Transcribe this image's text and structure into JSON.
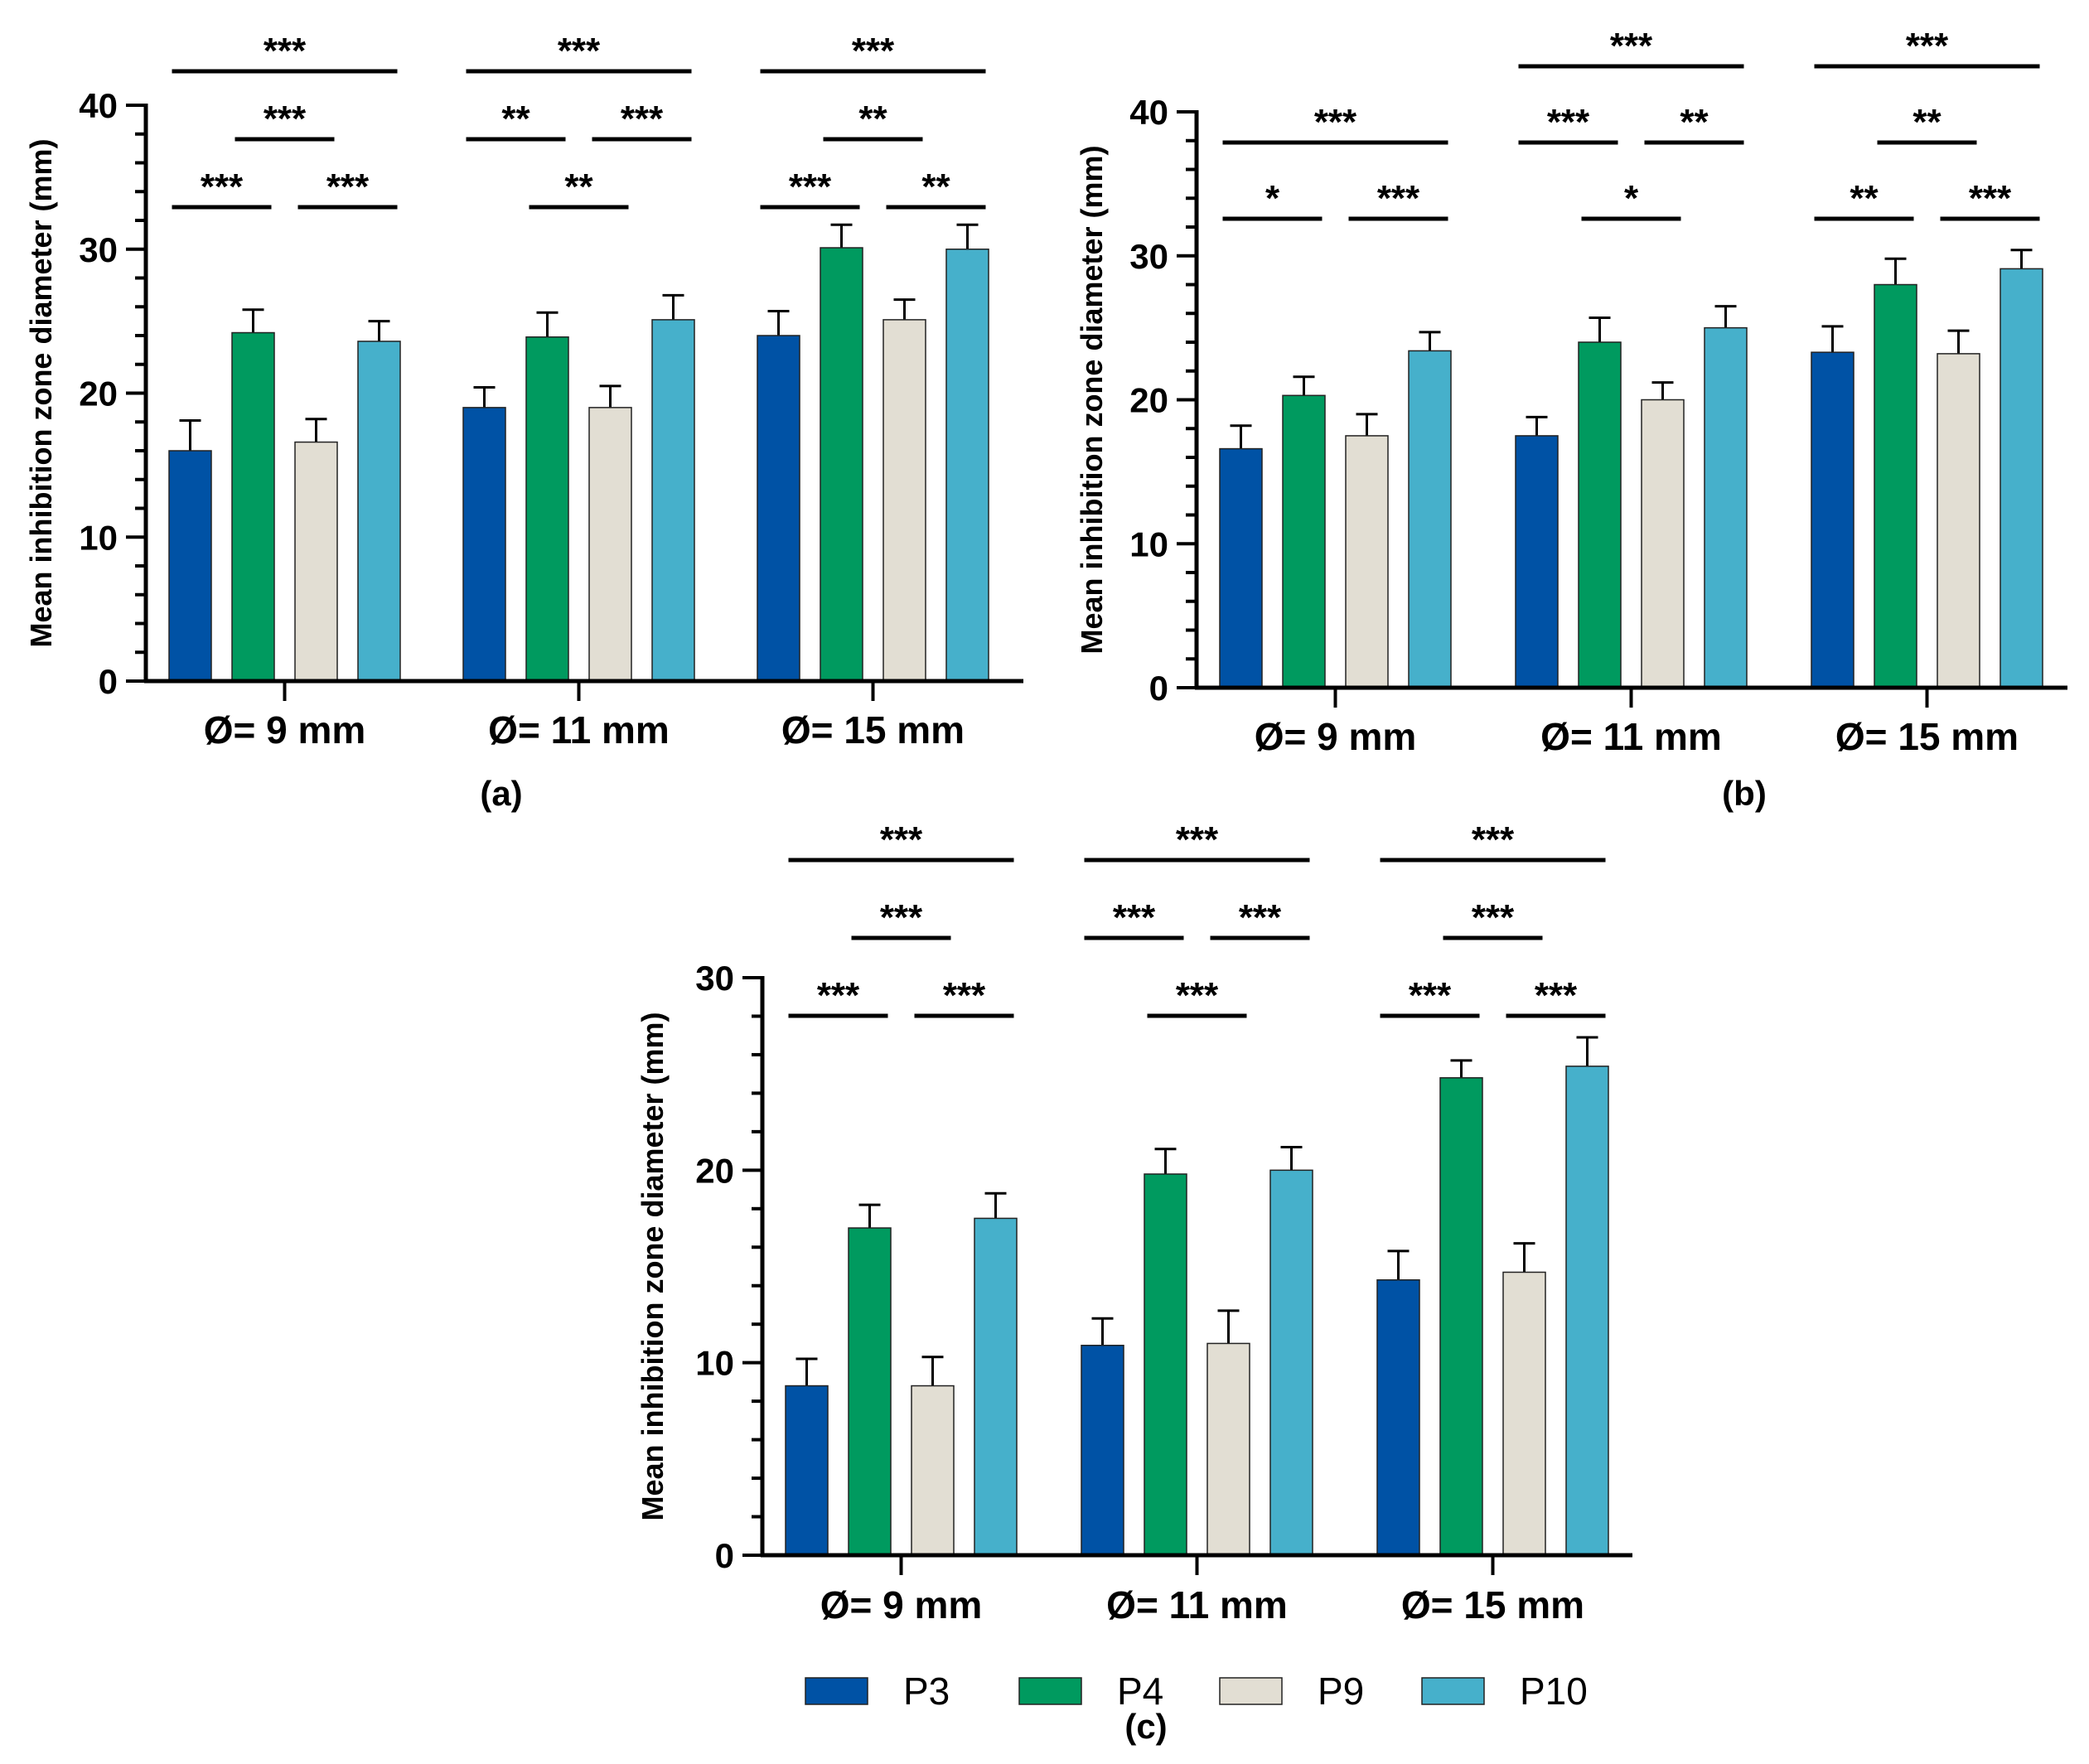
{
  "figure": {
    "legend": {
      "entries": [
        {
          "name": "P3",
          "color": "#0052a5"
        },
        {
          "name": "P4",
          "color": "#009a5f"
        },
        {
          "name": "P9",
          "color": "#e2ded3"
        },
        {
          "name": "P10",
          "color": "#46b0cb"
        }
      ]
    }
  },
  "chart_data": [
    {
      "panel": "(a)",
      "type": "bar",
      "title": "",
      "ylabel": "Mean inhibition zone diameter (mm)",
      "xlabel": "",
      "ylim": [
        0,
        40
      ],
      "yticks": [
        0,
        10,
        20,
        30,
        40
      ],
      "categories": [
        "Ø= 9 mm",
        "Ø= 11 mm",
        "Ø= 15 mm"
      ],
      "series": [
        {
          "name": "P3",
          "color": "#0052a5",
          "values": [
            16,
            19,
            24
          ],
          "errors": [
            2.1,
            1.4,
            1.7
          ]
        },
        {
          "name": "P4",
          "color": "#009a5f",
          "values": [
            24.2,
            23.9,
            30.1
          ],
          "errors": [
            1.6,
            1.7,
            1.6
          ]
        },
        {
          "name": "P9",
          "color": "#e2ded3",
          "values": [
            16.6,
            19,
            25.1
          ],
          "errors": [
            1.6,
            1.5,
            1.4
          ]
        },
        {
          "name": "P10",
          "color": "#46b0cb",
          "values": [
            23.6,
            25.1,
            30
          ],
          "errors": [
            1.4,
            1.7,
            1.7
          ]
        }
      ],
      "significance": [
        {
          "group": 0,
          "from": 0,
          "to": 1,
          "label": "***",
          "level": 0
        },
        {
          "group": 0,
          "from": 2,
          "to": 3,
          "label": "***",
          "level": 0
        },
        {
          "group": 0,
          "from": 1,
          "to": 2,
          "label": "***",
          "level": 1
        },
        {
          "group": 0,
          "from": 0,
          "to": 3,
          "label": "***",
          "level": 2
        },
        {
          "group": 1,
          "from": 1,
          "to": 2,
          "label": "**",
          "level": 0
        },
        {
          "group": 1,
          "from": 0,
          "to": 1,
          "label": "**",
          "level": 1
        },
        {
          "group": 1,
          "from": 2,
          "to": 3,
          "label": "***",
          "level": 1
        },
        {
          "group": 1,
          "from": 0,
          "to": 3,
          "label": "***",
          "level": 2
        },
        {
          "group": 2,
          "from": 0,
          "to": 1,
          "label": "***",
          "level": 0
        },
        {
          "group": 2,
          "from": 2,
          "to": 3,
          "label": "**",
          "level": 0
        },
        {
          "group": 2,
          "from": 1,
          "to": 2,
          "label": "**",
          "level": 1
        },
        {
          "group": 2,
          "from": 0,
          "to": 3,
          "label": "***",
          "level": 2
        }
      ]
    },
    {
      "panel": "(b)",
      "type": "bar",
      "title": "",
      "ylabel": "Mean inhibition zone diameter (mm)",
      "xlabel": "",
      "ylim": [
        0,
        40
      ],
      "yticks": [
        0,
        10,
        20,
        30,
        40
      ],
      "categories": [
        "Ø= 9 mm",
        "Ø= 11 mm",
        "Ø= 15 mm"
      ],
      "series": [
        {
          "name": "P3",
          "color": "#0052a5",
          "values": [
            16.6,
            17.5,
            23.3
          ],
          "errors": [
            1.6,
            1.3,
            1.8
          ]
        },
        {
          "name": "P4",
          "color": "#009a5f",
          "values": [
            20.3,
            24,
            28
          ],
          "errors": [
            1.3,
            1.7,
            1.8
          ]
        },
        {
          "name": "P9",
          "color": "#e2ded3",
          "values": [
            17.5,
            20,
            23.2
          ],
          "errors": [
            1.5,
            1.2,
            1.6
          ]
        },
        {
          "name": "P10",
          "color": "#46b0cb",
          "values": [
            23.4,
            25,
            29.1
          ],
          "errors": [
            1.3,
            1.5,
            1.3
          ]
        }
      ],
      "significance": [
        {
          "group": 0,
          "from": 0,
          "to": 1,
          "label": "*",
          "level": 0
        },
        {
          "group": 0,
          "from": 2,
          "to": 3,
          "label": "***",
          "level": 0
        },
        {
          "group": 0,
          "from": 0,
          "to": 3,
          "label": "***",
          "level": 1
        },
        {
          "group": 1,
          "from": 1,
          "to": 2,
          "label": "*",
          "level": 0
        },
        {
          "group": 1,
          "from": 0,
          "to": 1,
          "label": "***",
          "level": 1
        },
        {
          "group": 1,
          "from": 2,
          "to": 3,
          "label": "**",
          "level": 1
        },
        {
          "group": 1,
          "from": 0,
          "to": 3,
          "label": "***",
          "level": 2
        },
        {
          "group": 2,
          "from": 0,
          "to": 1,
          "label": "**",
          "level": 0
        },
        {
          "group": 2,
          "from": 2,
          "to": 3,
          "label": "***",
          "level": 0
        },
        {
          "group": 2,
          "from": 1,
          "to": 2,
          "label": "**",
          "level": 1
        },
        {
          "group": 2,
          "from": 0,
          "to": 3,
          "label": "***",
          "level": 2
        }
      ]
    },
    {
      "panel": "(c)",
      "type": "bar",
      "title": "",
      "ylabel": "Mean inhibition zone diameter (mm)",
      "xlabel": "",
      "ylim": [
        0,
        30
      ],
      "yticks": [
        0,
        10,
        20,
        30
      ],
      "categories": [
        "Ø= 9 mm",
        "Ø= 11 mm",
        "Ø= 15 mm"
      ],
      "series": [
        {
          "name": "P3",
          "color": "#0052a5",
          "values": [
            8.8,
            10.9,
            14.3
          ],
          "errors": [
            1.4,
            1.4,
            1.5
          ]
        },
        {
          "name": "P4",
          "color": "#009a5f",
          "values": [
            17,
            19.8,
            24.8
          ],
          "errors": [
            1.2,
            1.3,
            0.9
          ]
        },
        {
          "name": "P9",
          "color": "#e2ded3",
          "values": [
            8.8,
            11,
            14.7
          ],
          "errors": [
            1.5,
            1.7,
            1.5
          ]
        },
        {
          "name": "P10",
          "color": "#46b0cb",
          "values": [
            17.5,
            20,
            25.4
          ],
          "errors": [
            1.3,
            1.2,
            1.5
          ]
        }
      ],
      "significance": [
        {
          "group": 0,
          "from": 0,
          "to": 1,
          "label": "***",
          "level": 0
        },
        {
          "group": 0,
          "from": 2,
          "to": 3,
          "label": "***",
          "level": 0
        },
        {
          "group": 0,
          "from": 1,
          "to": 2,
          "label": "***",
          "level": 1
        },
        {
          "group": 0,
          "from": 0,
          "to": 3,
          "label": "***",
          "level": 2
        },
        {
          "group": 1,
          "from": 1,
          "to": 2,
          "label": "***",
          "level": 0
        },
        {
          "group": 1,
          "from": 0,
          "to": 1,
          "label": "***",
          "level": 1
        },
        {
          "group": 1,
          "from": 2,
          "to": 3,
          "label": "***",
          "level": 1
        },
        {
          "group": 1,
          "from": 0,
          "to": 3,
          "label": "***",
          "level": 2
        },
        {
          "group": 2,
          "from": 0,
          "to": 1,
          "label": "***",
          "level": 0
        },
        {
          "group": 2,
          "from": 2,
          "to": 3,
          "label": "***",
          "level": 0
        },
        {
          "group": 2,
          "from": 1,
          "to": 2,
          "label": "***",
          "level": 1
        },
        {
          "group": 2,
          "from": 0,
          "to": 3,
          "label": "***",
          "level": 2
        }
      ]
    }
  ]
}
